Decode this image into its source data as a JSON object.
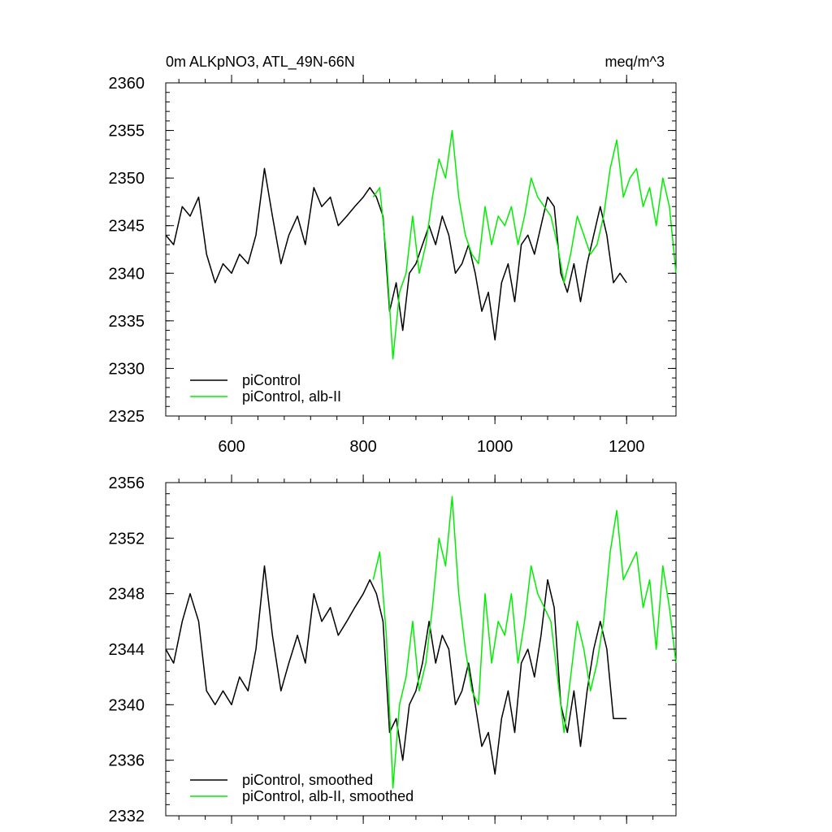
{
  "figure": {
    "title_left": "0m ALKpNO3, ATL_49N-66N",
    "title_right": "meq/m^3"
  },
  "colors": {
    "black_series": "#000000",
    "green_series": "#00ee00"
  },
  "chart_data": [
    {
      "type": "line",
      "xlim": [
        500,
        1275
      ],
      "ylim": [
        2325,
        2360
      ],
      "x_ticks": [
        600,
        800,
        1000,
        1200
      ],
      "x_tick_labels": [
        "600",
        "800",
        "1000",
        "1200"
      ],
      "y_ticks": [
        2325,
        2330,
        2335,
        2340,
        2345,
        2350,
        2355,
        2360
      ],
      "y_tick_labels": [
        "2325",
        "2330",
        "2335",
        "2340",
        "2345",
        "2350",
        "2355",
        "2360"
      ],
      "grid": false,
      "legend_position": "bottom-left",
      "series": [
        {
          "name": "piControl",
          "color": "#000000",
          "x": [
            500,
            512,
            525,
            537,
            550,
            562,
            575,
            587,
            600,
            612,
            625,
            637,
            650,
            662,
            675,
            687,
            700,
            712,
            725,
            737,
            750,
            762,
            775,
            787,
            800,
            810,
            820,
            830,
            840,
            850,
            860,
            870,
            880,
            890,
            900,
            910,
            920,
            930,
            940,
            950,
            960,
            970,
            980,
            990,
            1000,
            1010,
            1020,
            1030,
            1040,
            1050,
            1060,
            1070,
            1080,
            1090,
            1100,
            1110,
            1120,
            1130,
            1140,
            1150,
            1160,
            1170,
            1180,
            1190,
            1200
          ],
          "y": [
            2344,
            2343,
            2347,
            2346,
            2348,
            2342,
            2339,
            2341,
            2340,
            2342,
            2341,
            2344,
            2351,
            2346,
            2341,
            2344,
            2346,
            2343,
            2349,
            2347,
            2348,
            2345,
            2346,
            2347,
            2348,
            2349,
            2348,
            2346,
            2336,
            2339,
            2334,
            2340,
            2341,
            2343,
            2345,
            2343,
            2346,
            2344,
            2340,
            2341,
            2343,
            2340,
            2336,
            2338,
            2333,
            2339,
            2341,
            2337,
            2343,
            2344,
            2342,
            2345,
            2348,
            2347,
            2340,
            2338,
            2341,
            2337,
            2341,
            2344,
            2347,
            2344,
            2339,
            2340,
            2339
          ]
        },
        {
          "name": "piControl, alb-II",
          "color": "#00ee00",
          "x": [
            815,
            825,
            835,
            845,
            855,
            865,
            875,
            885,
            895,
            905,
            915,
            925,
            935,
            945,
            955,
            965,
            975,
            985,
            995,
            1005,
            1015,
            1025,
            1035,
            1045,
            1055,
            1065,
            1075,
            1085,
            1095,
            1105,
            1115,
            1125,
            1135,
            1145,
            1155,
            1165,
            1175,
            1185,
            1195,
            1205,
            1215,
            1225,
            1235,
            1245,
            1255,
            1265,
            1275
          ],
          "y": [
            2348,
            2349,
            2342,
            2331,
            2338,
            2340,
            2346,
            2340,
            2343,
            2348,
            2352,
            2350,
            2355,
            2348,
            2344,
            2342,
            2341,
            2347,
            2343,
            2346,
            2345,
            2347,
            2343,
            2346,
            2350,
            2348,
            2347,
            2346,
            2343,
            2339,
            2342,
            2346,
            2344,
            2342,
            2343,
            2346,
            2351,
            2354,
            2348,
            2350,
            2351,
            2347,
            2349,
            2345,
            2350,
            2347,
            2340
          ]
        }
      ]
    },
    {
      "type": "line",
      "xlim": [
        500,
        1275
      ],
      "ylim": [
        2332,
        2356
      ],
      "x_ticks": [
        600,
        800,
        1000,
        1200
      ],
      "y_ticks": [
        2332,
        2336,
        2340,
        2344,
        2348,
        2352,
        2356
      ],
      "y_tick_labels": [
        "2332",
        "2336",
        "2340",
        "2344",
        "2348",
        "2352",
        "2356"
      ],
      "grid": false,
      "legend_position": "bottom-left",
      "series": [
        {
          "name": "piControl, smoothed",
          "color": "#000000",
          "x": [
            500,
            512,
            525,
            537,
            550,
            562,
            575,
            587,
            600,
            612,
            625,
            637,
            650,
            662,
            675,
            687,
            700,
            712,
            725,
            737,
            750,
            762,
            775,
            787,
            800,
            810,
            820,
            830,
            840,
            850,
            860,
            870,
            880,
            890,
            900,
            910,
            920,
            930,
            940,
            950,
            960,
            970,
            980,
            990,
            1000,
            1010,
            1020,
            1030,
            1040,
            1050,
            1060,
            1070,
            1080,
            1090,
            1100,
            1110,
            1120,
            1130,
            1140,
            1150,
            1160,
            1170,
            1180,
            1190,
            1200
          ],
          "y": [
            2344,
            2343,
            2346,
            2348,
            2346,
            2341,
            2340,
            2341,
            2340,
            2342,
            2341,
            2344,
            2350,
            2345,
            2341,
            2343,
            2345,
            2343,
            2348,
            2346,
            2347,
            2345,
            2346,
            2347,
            2348,
            2349,
            2348,
            2346,
            2338,
            2339,
            2336,
            2340,
            2341,
            2343,
            2346,
            2343,
            2345,
            2344,
            2340,
            2341,
            2343,
            2340,
            2337,
            2338,
            2335,
            2339,
            2341,
            2338,
            2343,
            2344,
            2342,
            2345,
            2349,
            2347,
            2340,
            2338,
            2341,
            2337,
            2341,
            2344,
            2346,
            2344,
            2339,
            2339,
            2339
          ]
        },
        {
          "name": "piControl, alb-II, smoothed",
          "color": "#00ee00",
          "x": [
            815,
            825,
            835,
            845,
            855,
            865,
            875,
            885,
            895,
            905,
            915,
            925,
            935,
            945,
            955,
            965,
            975,
            985,
            995,
            1005,
            1015,
            1025,
            1035,
            1045,
            1055,
            1065,
            1075,
            1085,
            1095,
            1105,
            1115,
            1125,
            1135,
            1145,
            1155,
            1165,
            1175,
            1185,
            1195,
            1205,
            1215,
            1225,
            1235,
            1245,
            1255,
            1265,
            1275
          ],
          "y": [
            2349,
            2351,
            2345,
            2334,
            2340,
            2342,
            2346,
            2341,
            2343,
            2347,
            2352,
            2350,
            2355,
            2348,
            2344,
            2341,
            2340,
            2348,
            2343,
            2346,
            2345,
            2348,
            2343,
            2346,
            2350,
            2348,
            2347,
            2346,
            2342,
            2338,
            2342,
            2346,
            2344,
            2341,
            2343,
            2346,
            2351,
            2354,
            2349,
            2350,
            2351,
            2347,
            2349,
            2344,
            2350,
            2347,
            2343
          ]
        }
      ]
    }
  ]
}
